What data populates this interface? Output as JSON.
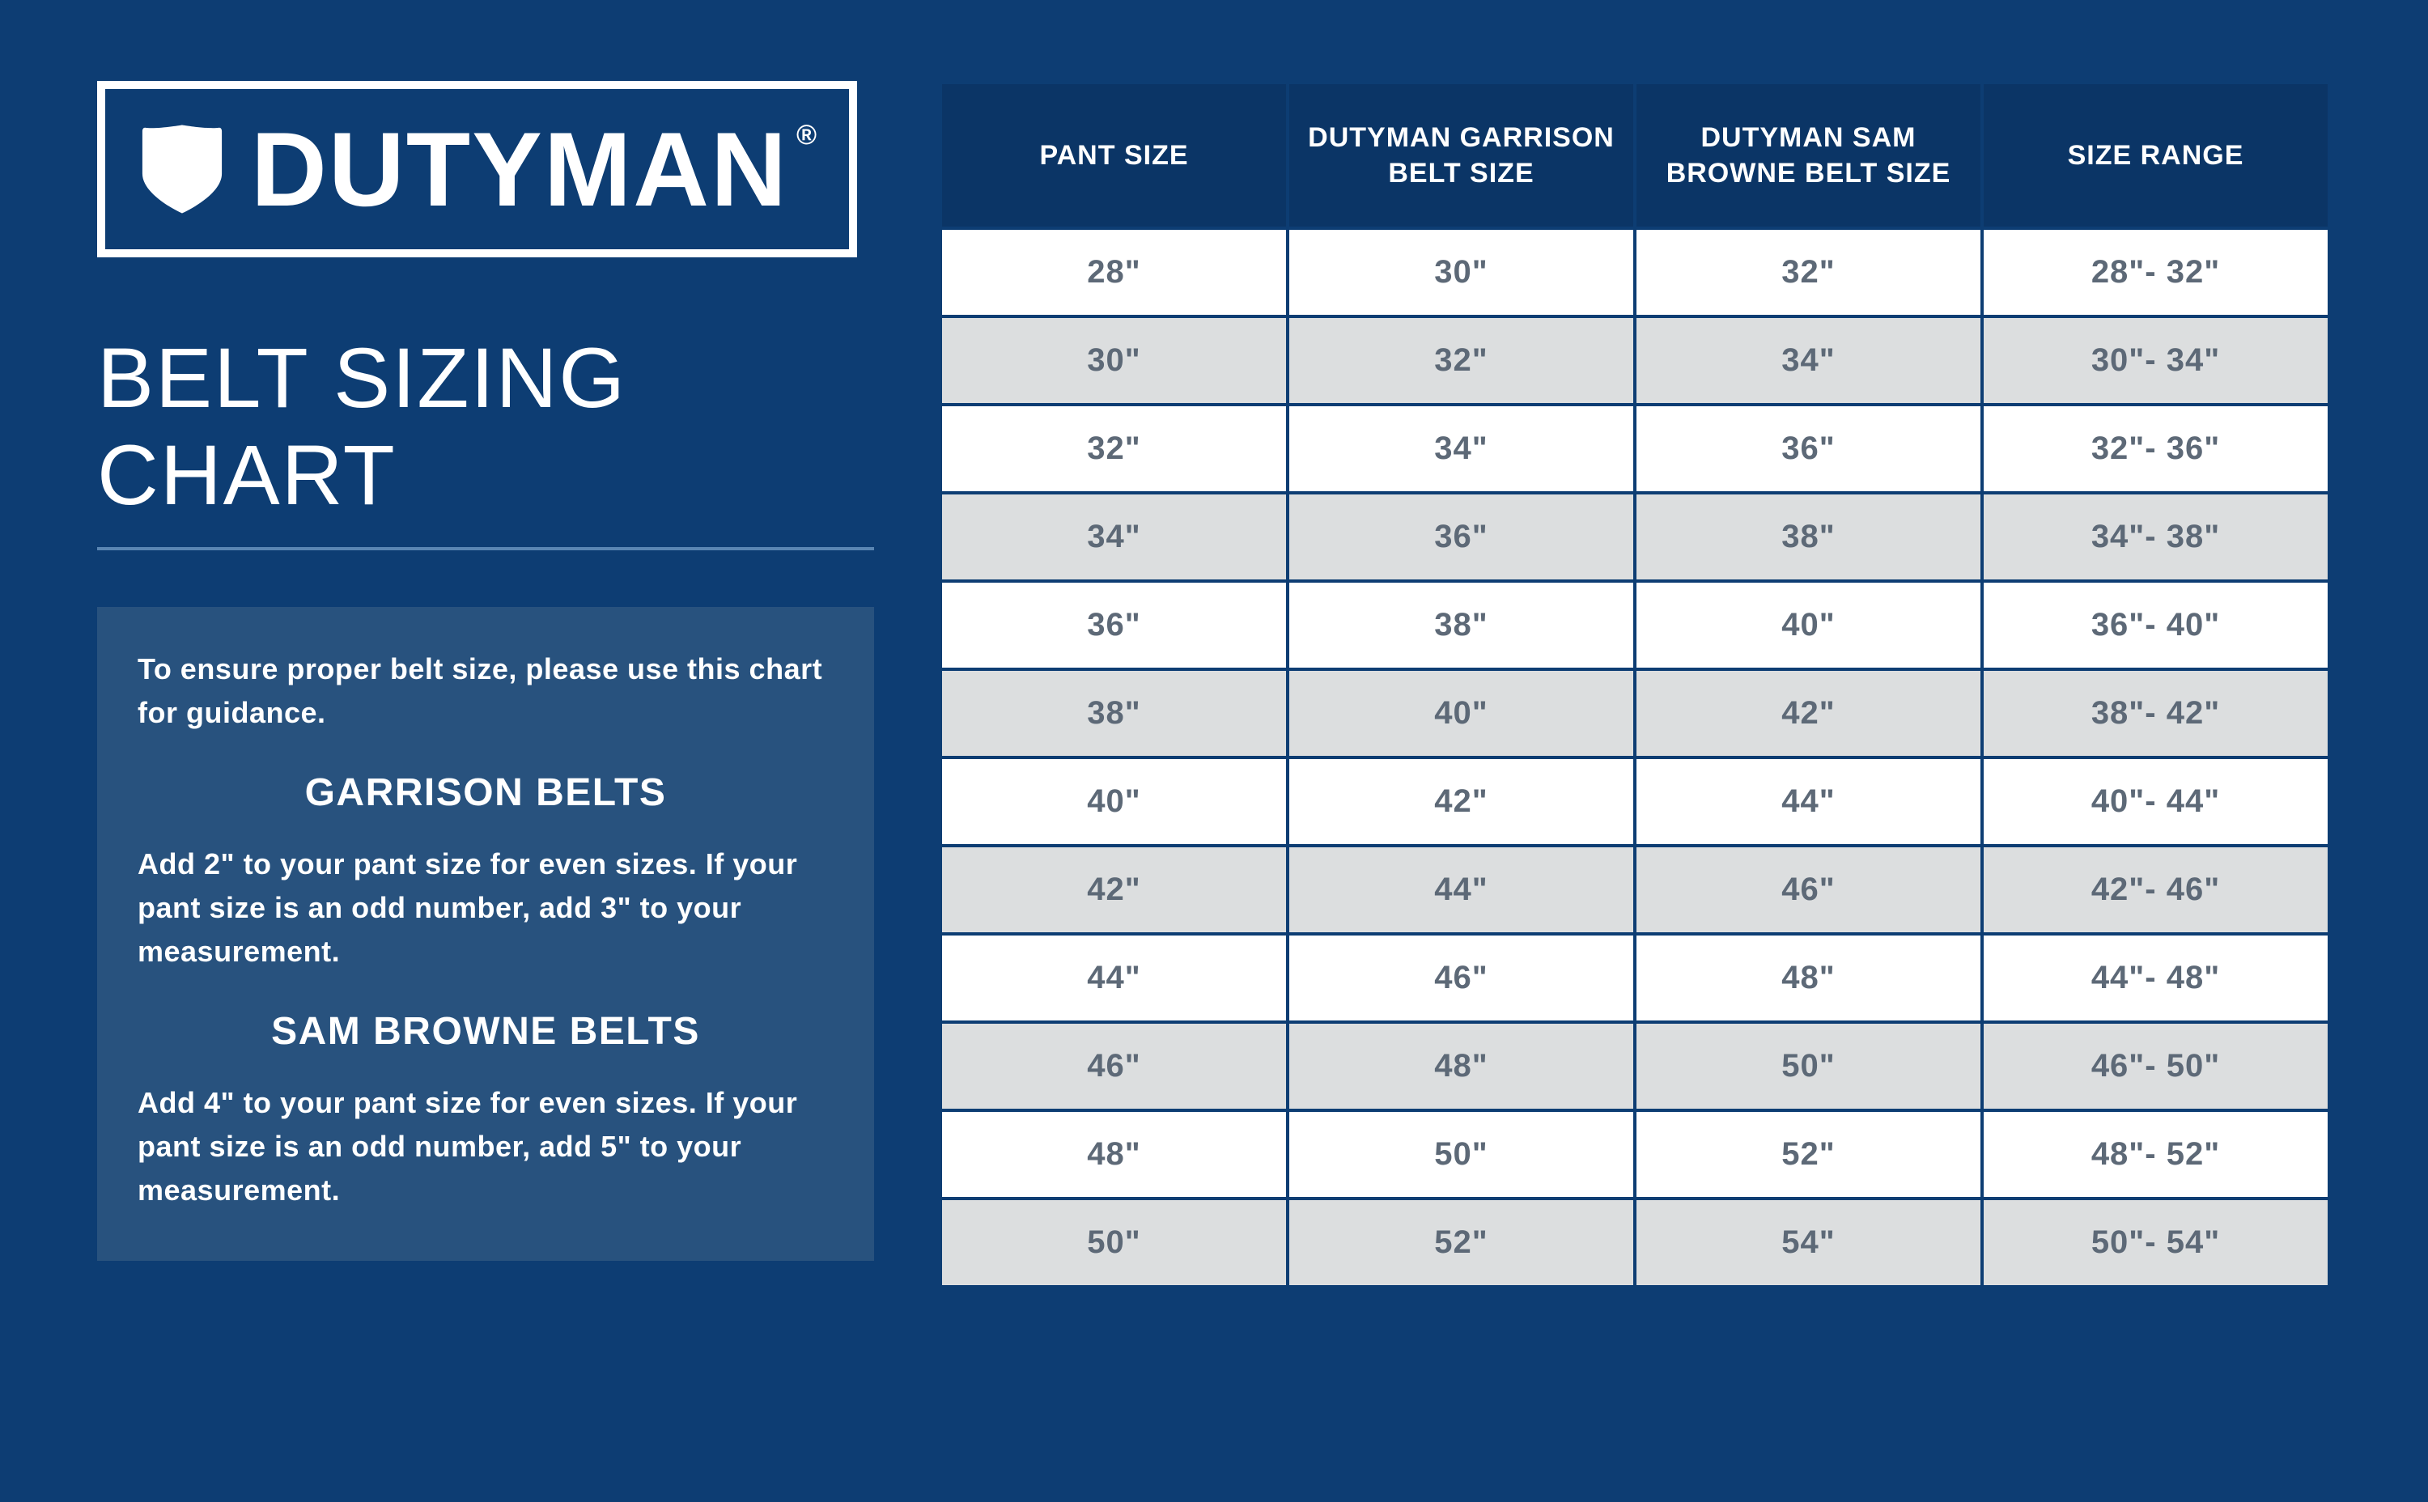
{
  "colors": {
    "page_bg": "#0d3d73",
    "info_bg": "#28527e",
    "header_cell_bg": "#0b3566",
    "row_odd_bg": "#ffffff",
    "row_even_bg": "#dcdedf",
    "cell_text": "#5d6977",
    "white": "#ffffff",
    "title_underline": "#5a86b3"
  },
  "typography": {
    "logo_fontsize": 130,
    "title_fontsize": 105,
    "info_heading_fontsize": 48,
    "info_body_fontsize": 36,
    "th_fontsize": 34,
    "td_fontsize": 40
  },
  "logo": {
    "brand": "DUTYMAN",
    "registered": "®"
  },
  "title": "BELT SIZING CHART",
  "info": {
    "intro": "To ensure proper belt size, please use this chart for guidance.",
    "garrison_heading": "GARRISON BELTS",
    "garrison_body": "Add 2\" to your pant size for even sizes. If your pant size is an odd number, add 3\" to your measurement.",
    "sambrowne_heading": "SAM BROWNE BELTS",
    "sambrowne_body": "Add 4\" to your pant size for even sizes. If your pant size is an odd number, add 5\" to your measurement."
  },
  "table": {
    "columns": [
      "PANT SIZE",
      "DUTYMAN GARRISON BELT SIZE",
      "DUTYMAN SAM BROWNE BELT SIZE",
      "SIZE RANGE"
    ],
    "rows": [
      [
        "28\"",
        "30\"",
        "32\"",
        "28\"- 32\""
      ],
      [
        "30\"",
        "32\"",
        "34\"",
        "30\"- 34\""
      ],
      [
        "32\"",
        "34\"",
        "36\"",
        "32\"- 36\""
      ],
      [
        "34\"",
        "36\"",
        "38\"",
        "34\"- 38\""
      ],
      [
        "36\"",
        "38\"",
        "40\"",
        "36\"- 40\""
      ],
      [
        "38\"",
        "40\"",
        "42\"",
        "38\"- 42\""
      ],
      [
        "40\"",
        "42\"",
        "44\"",
        "40\"- 44\""
      ],
      [
        "42\"",
        "44\"",
        "46\"",
        "42\"- 46\""
      ],
      [
        "44\"",
        "46\"",
        "48\"",
        "44\"- 48\""
      ],
      [
        "46\"",
        "48\"",
        "50\"",
        "46\"- 50\""
      ],
      [
        "48\"",
        "50\"",
        "52\"",
        "48\"- 52\""
      ],
      [
        "50\"",
        "52\"",
        "54\"",
        "50\"- 54\""
      ]
    ]
  }
}
